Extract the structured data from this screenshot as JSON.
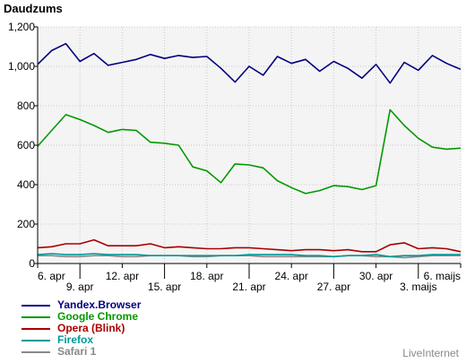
{
  "chart_data": {
    "type": "line",
    "title": "Daudzums",
    "xlabel": "",
    "ylabel": "",
    "ylim": [
      0,
      1200
    ],
    "yticks": [
      "0",
      "200",
      "400",
      "600",
      "800",
      "1,000",
      "1,200"
    ],
    "grid": true,
    "legend_position": "bottom-left",
    "x": [
      "6. apr",
      "7. apr",
      "8. apr",
      "9. apr",
      "10. apr",
      "11. apr",
      "12. apr",
      "13. apr",
      "14. apr",
      "15. apr",
      "16. apr",
      "17. apr",
      "18. apr",
      "19. apr",
      "20. apr",
      "21. apr",
      "22. apr",
      "23. apr",
      "24. apr",
      "25. apr",
      "26. apr",
      "27. apr",
      "28. apr",
      "29. apr",
      "30. apr",
      "1. maijs",
      "2. maijs",
      "3. maijs",
      "4. maijs",
      "5. maijs",
      "6. maijs"
    ],
    "tick_labels": [
      "6. apr",
      "9. apr",
      "12. apr",
      "15. apr",
      "18. apr",
      "21. apr",
      "24. apr",
      "27. apr",
      "30. apr",
      "3. maijs",
      "6. maijs"
    ],
    "series": [
      {
        "name": "Yandex.Browser",
        "color": "#000080",
        "values": [
          1010,
          1080,
          1115,
          1025,
          1065,
          1005,
          1020,
          1035,
          1060,
          1040,
          1055,
          1045,
          1050,
          990,
          920,
          1000,
          955,
          1050,
          1015,
          1035,
          975,
          1025,
          990,
          940,
          1010,
          915,
          1020,
          980,
          1055,
          1015,
          985
        ]
      },
      {
        "name": "Google Chrome",
        "color": "#009900",
        "values": [
          595,
          675,
          755,
          730,
          700,
          665,
          680,
          675,
          615,
          610,
          600,
          490,
          470,
          410,
          505,
          500,
          485,
          420,
          385,
          355,
          370,
          395,
          390,
          375,
          395,
          780,
          700,
          635,
          590,
          580,
          585
        ]
      },
      {
        "name": "Opera (Blink)",
        "color": "#aa0000",
        "values": [
          80,
          85,
          100,
          100,
          120,
          90,
          90,
          90,
          100,
          80,
          85,
          80,
          75,
          75,
          80,
          80,
          75,
          70,
          65,
          70,
          70,
          65,
          70,
          60,
          60,
          95,
          105,
          75,
          80,
          75,
          60
        ]
      },
      {
        "name": "Firefox",
        "color": "#009999",
        "values": [
          45,
          50,
          45,
          45,
          50,
          45,
          45,
          45,
          40,
          40,
          40,
          40,
          40,
          40,
          40,
          45,
          45,
          45,
          45,
          40,
          40,
          35,
          40,
          40,
          45,
          35,
          40,
          40,
          45,
          45,
          45
        ]
      },
      {
        "name": "Safari 1",
        "color": "#888888",
        "values": [
          40,
          40,
          35,
          35,
          40,
          40,
          35,
          35,
          40,
          40,
          40,
          35,
          35,
          40,
          40,
          40,
          35,
          35,
          35,
          35,
          35,
          35,
          40,
          40,
          35,
          35,
          30,
          35,
          40,
          40,
          40
        ]
      }
    ]
  },
  "brand": "LiveInternet"
}
